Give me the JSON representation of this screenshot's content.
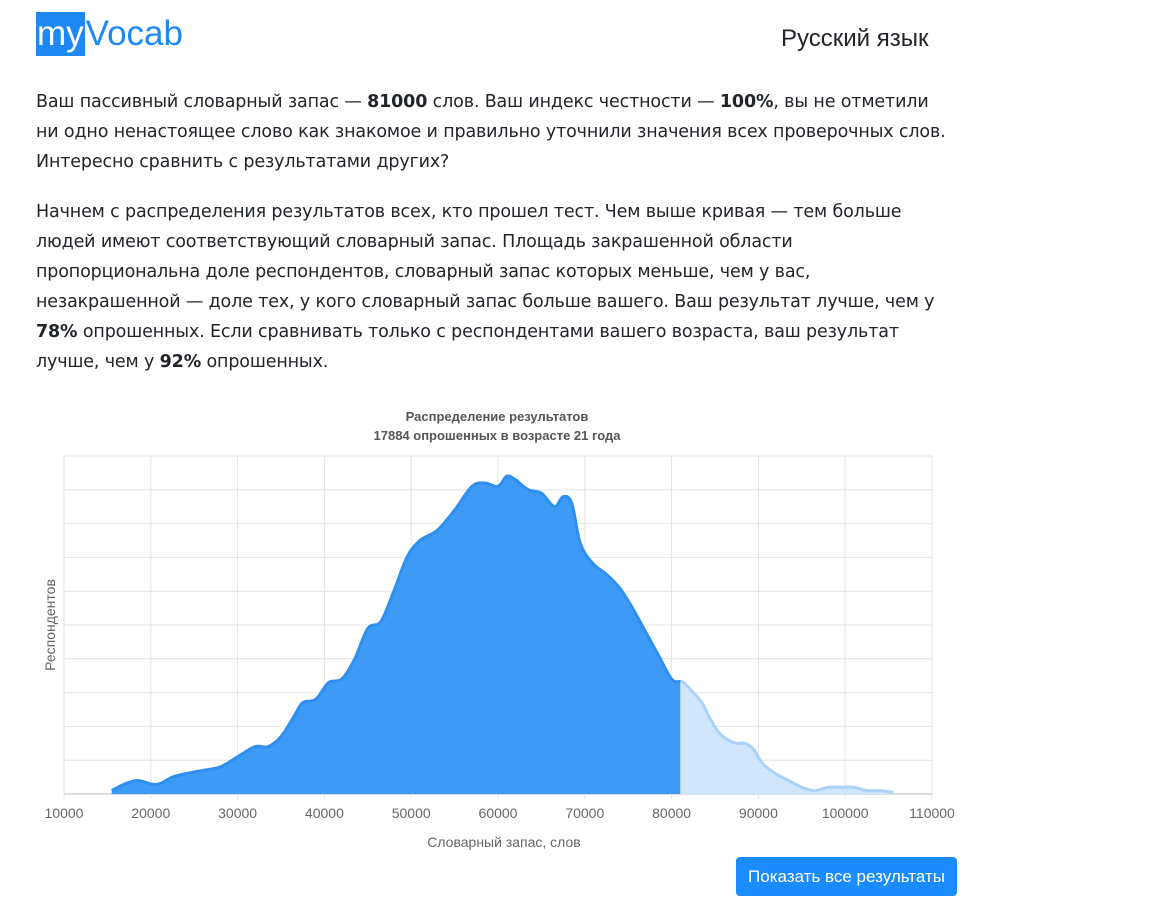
{
  "header": {
    "logo_my": "my",
    "logo_vocab": "Vocab",
    "language": "Русский язык"
  },
  "intro": {
    "s1_before": "Ваш пассивный словарный запас — ",
    "vocab_size": "81000",
    "s1_after": " слов. Ваш индекс честности — ",
    "honesty_index": "100%",
    "s1_rest": ", вы не отметили ни одно ненастоящее слово как знакомое и правильно уточнили значения всех проверочных слов. Интересно сравнить с результатами других?"
  },
  "explanation": {
    "text1": "Начнем с распределения результатов всех, кто прошел тест. Чем выше кривая — тем больше людей имеют соответствующий словарный запас. Площадь закрашенной области пропорциональна доле респондентов, словарный запас которых меньше, чем у вас, незакрашенной — доле тех, у кого словарный запас больше вашего. Ваш результат лучше, чем у ",
    "pct_all": "78%",
    "text2": " опрошенных. Если сравнивать только с респондентами вашего возраста, ваш результат лучше, чем у ",
    "pct_age": "92%",
    "text3": " опрошенных."
  },
  "chart_data": {
    "type": "area",
    "title": "Распределение результатов",
    "subtitle": "17884 опрошенных в возрасте 21 года",
    "xlabel": "Словарный запас, слов",
    "ylabel": "Респондентов",
    "xlim": [
      10000,
      110000
    ],
    "xticks": [
      10000,
      20000,
      30000,
      40000,
      50000,
      60000,
      70000,
      80000,
      90000,
      100000,
      110000
    ],
    "ylim": [
      0,
      10
    ],
    "y_gridlines": 10,
    "y_tick_labels_shown": false,
    "grid": true,
    "user_value": 81000,
    "colors": {
      "filled": "#3d9bf5",
      "filled_line": "#2f8ff0",
      "unfilled": "#cfe6fc",
      "unfilled_line": "#a9d2fa"
    },
    "x": [
      15500,
      17000,
      18500,
      20000,
      21000,
      22500,
      24000,
      26000,
      28000,
      30000,
      32000,
      33500,
      35000,
      36500,
      37500,
      39000,
      40500,
      42000,
      43500,
      45000,
      46500,
      48000,
      49500,
      51000,
      53000,
      55000,
      57000,
      58500,
      60000,
      61000,
      62000,
      63500,
      65000,
      66500,
      67500,
      68500,
      69500,
      71000,
      72500,
      74000,
      75500,
      77000,
      78500,
      80000,
      81400,
      82500,
      83500,
      84500,
      85500,
      86500,
      87500,
      88500,
      89500,
      90500,
      92000,
      93500,
      95000,
      96500,
      98000,
      99500,
      101000,
      102500,
      104000,
      105500
    ],
    "y": [
      0.1,
      0.3,
      0.4,
      0.3,
      0.3,
      0.5,
      0.6,
      0.7,
      0.8,
      1.1,
      1.4,
      1.4,
      1.7,
      2.3,
      2.7,
      2.8,
      3.3,
      3.4,
      4.0,
      4.9,
      5.1,
      6.0,
      7.0,
      7.5,
      7.8,
      8.4,
      9.1,
      9.2,
      9.1,
      9.4,
      9.3,
      9.0,
      8.9,
      8.5,
      8.8,
      8.6,
      7.4,
      6.8,
      6.5,
      6.1,
      5.5,
      4.8,
      4.1,
      3.4,
      3.3,
      3.0,
      2.7,
      2.2,
      1.8,
      1.6,
      1.5,
      1.5,
      1.3,
      0.9,
      0.6,
      0.4,
      0.2,
      0.1,
      0.2,
      0.2,
      0.2,
      0.1,
      0.1,
      0.05
    ]
  },
  "button": {
    "label": "Показать все результаты"
  }
}
